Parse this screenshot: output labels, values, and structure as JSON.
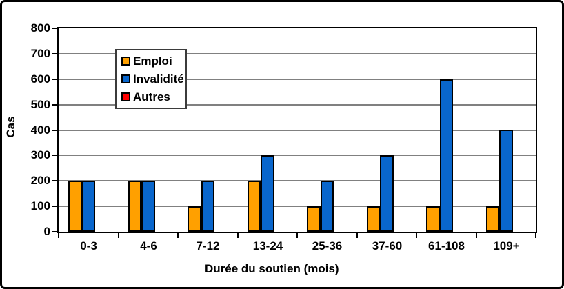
{
  "chart": {
    "y_axis_title": "Cas",
    "x_axis_title": "Durée du soutien (mois)"
  },
  "legend": {
    "items": [
      {
        "label": "Emploi",
        "color": "#FFA000"
      },
      {
        "label": "Invalidité",
        "color": "#0966CC"
      },
      {
        "label": "Autres",
        "color": "#FF0000"
      }
    ]
  },
  "chart_data": {
    "type": "bar",
    "title": "",
    "xlabel": "Durée du soutien (mois)",
    "ylabel": "Cas",
    "categories": [
      "0-3",
      "4-6",
      "7-12",
      "13-24",
      "25-36",
      "37-60",
      "61-108",
      "109+"
    ],
    "series": [
      {
        "name": "Emploi",
        "color": "#FFA000",
        "values": [
          200,
          200,
          100,
          200,
          100,
          100,
          100,
          100
        ]
      },
      {
        "name": "Invalidité",
        "color": "#0966CC",
        "values": [
          200,
          200,
          200,
          300,
          200,
          300,
          600,
          400
        ]
      },
      {
        "name": "Autres",
        "color": "#FF0000",
        "values": [
          0,
          0,
          0,
          0,
          0,
          0,
          0,
          0
        ]
      }
    ],
    "ylim": [
      0,
      800
    ],
    "yticks": [
      0,
      100,
      200,
      300,
      400,
      500,
      600,
      700,
      800
    ],
    "grid": true,
    "gridline_color": "#808080",
    "legend_position": "upper-left-inside"
  }
}
